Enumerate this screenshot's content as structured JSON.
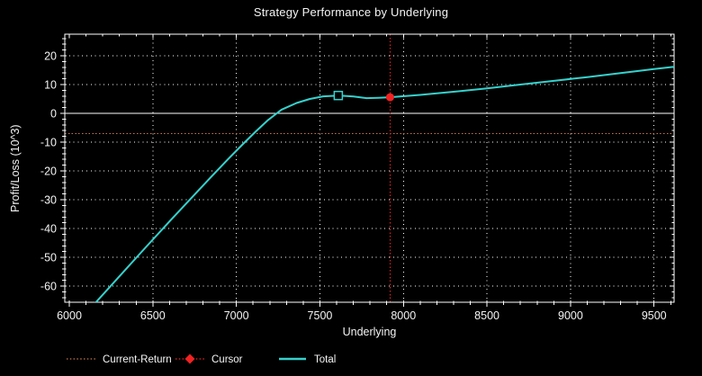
{
  "chart_data": {
    "type": "line",
    "title": "Strategy Performance by Underlying",
    "xlabel": "Underlying",
    "ylabel": "Profit/Loss (10^3)",
    "xlim": [
      5973,
      9620
    ],
    "ylim": [
      -65.6,
      27.5
    ],
    "grid": true,
    "legend_position": "bottom",
    "x_major_ticks": [
      6000,
      6500,
      7000,
      7500,
      8000,
      8500,
      9000,
      9500
    ],
    "x_tick_labels": [
      "6000",
      "6500",
      "7000",
      "7500",
      "8000",
      "8500",
      "9000",
      "9500"
    ],
    "x_minor_step": 100,
    "y_major_ticks": [
      20,
      10,
      0,
      -10,
      -20,
      -30,
      -40,
      -50,
      -60
    ],
    "y_tick_labels": [
      "20",
      "10",
      "0",
      "-10",
      "-20",
      "-30",
      "-40",
      "-50",
      "-60"
    ],
    "y_minor_step": 2,
    "x_gridlines": [
      6500,
      7000,
      7500,
      8000,
      8500,
      9000,
      9500
    ],
    "y_gridlines": [
      20,
      10,
      -10,
      -20,
      -30,
      -40,
      -50,
      -60
    ],
    "zero_line_y": 0,
    "series": [
      {
        "name": "Total",
        "color": "#35d2cd",
        "points": [
          [
            6150,
            -66.2
          ],
          [
            6300,
            -56.6
          ],
          [
            6450,
            -47.0
          ],
          [
            6600,
            -37.5
          ],
          [
            6750,
            -28.2
          ],
          [
            6850,
            -22.0
          ],
          [
            6950,
            -15.9
          ],
          [
            7040,
            -10.6
          ],
          [
            7120,
            -6.1
          ],
          [
            7190,
            -2.3
          ],
          [
            7270,
            1.3
          ],
          [
            7360,
            3.6
          ],
          [
            7440,
            5.0
          ],
          [
            7520,
            5.9
          ],
          [
            7610,
            6.2
          ],
          [
            7700,
            5.85
          ],
          [
            7780,
            5.3
          ],
          [
            7850,
            5.4
          ],
          [
            7920,
            5.6
          ],
          [
            8100,
            6.4
          ],
          [
            8300,
            7.5
          ],
          [
            8500,
            8.7
          ],
          [
            8700,
            10.0
          ],
          [
            8900,
            11.3
          ],
          [
            9100,
            12.6
          ],
          [
            9300,
            14.0
          ],
          [
            9500,
            15.4
          ],
          [
            9620,
            16.2
          ]
        ]
      }
    ],
    "current_return": {
      "label": "Current-Return",
      "y": -7,
      "color": "#c8754d"
    },
    "cursor": {
      "label": "Cursor",
      "x": 7920,
      "y": 5.6,
      "color": "#f22222"
    },
    "square_marker": {
      "x": 7610,
      "y": 6.2,
      "color": "#35d2cd"
    },
    "colors": {
      "background": "#000000",
      "axis": "#ffffff",
      "grid": "#ffffff",
      "zero_line": "#ffffff",
      "text": "#f4f4f4"
    }
  },
  "legend": {
    "items": [
      {
        "label": "Current-Return",
        "swatch": "dotted-line",
        "color": "#c8754d"
      },
      {
        "label": "Cursor",
        "swatch": "diamond-dotted",
        "color": "#f22222"
      },
      {
        "label": "Total",
        "swatch": "solid-line",
        "color": "#35d2cd"
      }
    ]
  }
}
